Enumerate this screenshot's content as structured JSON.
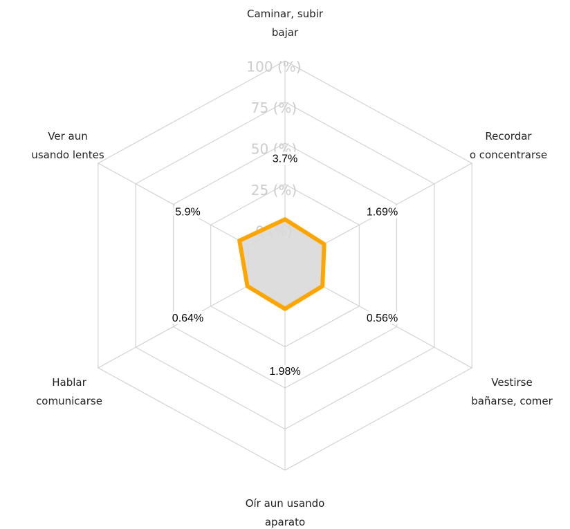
{
  "chart_data": {
    "type": "radar",
    "categories": [
      [
        "Caminar, subir",
        "bajar"
      ],
      [
        "Recordar",
        "o concentrarse"
      ],
      [
        "Vestirse",
        "bañarse, comer"
      ],
      [
        "Oír aun usando",
        "aparato"
      ],
      [
        "Hablar",
        "comunicarse"
      ],
      [
        "Ver aun",
        "usando lentes"
      ]
    ],
    "values": [
      3.7,
      1.69,
      0.56,
      1.98,
      0.64,
      5.9
    ],
    "value_labels": [
      "3.7%",
      "1.69%",
      "0.56%",
      "1.98%",
      "0.64%",
      "5.9%"
    ],
    "color": "#ffa500",
    "fill": "#d9d9d9",
    "ylim": [
      0,
      100
    ],
    "yticks": [
      {
        "value": 0,
        "label": "0 (%)"
      },
      {
        "value": 25,
        "label": "25 (%)"
      },
      {
        "value": 50,
        "label": "50 (%)"
      },
      {
        "value": 75,
        "label": "75 (%)"
      },
      {
        "value": 100,
        "label": "100 (%)"
      }
    ],
    "grid": true
  }
}
